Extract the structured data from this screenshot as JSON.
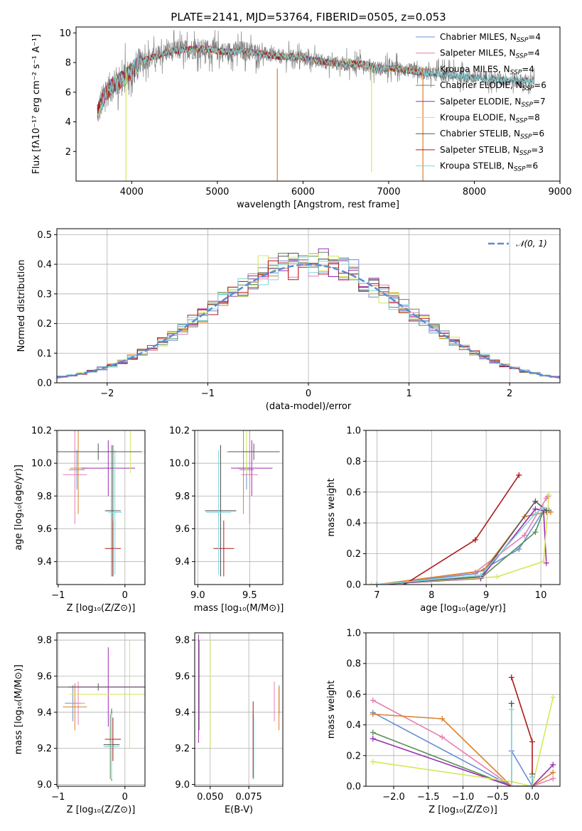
{
  "colors": {
    "Chabrier MILES": "#6a8fd4",
    "Salpeter MILES": "#e57fb2",
    "Kroupa MILES": "#d9822b",
    "Chabrier ELODIE": "#5a8f5a",
    "Salpeter ELODIE": "#9b2bb0",
    "Kroupa ELODIE": "#d4e85a",
    "Chabrier STELIB": "#555555",
    "Salpeter STELIB": "#b01818",
    "Kroupa STELIB": "#7fd6dc",
    "normal": "#5b8bd4"
  },
  "chart_data": [
    {
      "id": "spectrum",
      "type": "line",
      "title": "PLATE=2141, MJD=53764, FIBERID=0505, z=0.053",
      "xlabel": "wavelength [Angstrom, rest frame]",
      "ylabel": "Flux [fλ10⁻¹⁷ erg cm⁻² s⁻¹ A⁻¹]",
      "xlim": [
        3350,
        9000
      ],
      "ylim": [
        0,
        10.4
      ],
      "xticks": [
        4000,
        5000,
        6000,
        7000,
        8000,
        9000
      ],
      "yticks": [
        2,
        4,
        6,
        8,
        10
      ],
      "legend_position": "top-right",
      "legend": [
        {
          "name": "Chabrier MILES, N",
          "sub": "SSP",
          "tail": "=4",
          "color": "Chabrier MILES"
        },
        {
          "name": "Salpeter MILES, N",
          "sub": "SSP",
          "tail": "=4",
          "color": "Salpeter MILES"
        },
        {
          "name": "Kroupa MILES, N",
          "sub": "SSP",
          "tail": "=4",
          "color": "Kroupa MILES"
        },
        {
          "name": "Chabrier ELODIE, N",
          "sub": "SSP",
          "tail": "=6",
          "color": "Chabrier ELODIE"
        },
        {
          "name": "Salpeter ELODIE, N",
          "sub": "SSP",
          "tail": "=7",
          "color": "Salpeter ELODIE"
        },
        {
          "name": "Kroupa ELODIE, N",
          "sub": "SSP",
          "tail": "=8",
          "color": "Kroupa ELODIE"
        },
        {
          "name": "Chabrier STELIB, N",
          "sub": "SSP",
          "tail": "=6",
          "color": "Chabrier STELIB"
        },
        {
          "name": "Salpeter STELIB, N",
          "sub": "SSP",
          "tail": "=3",
          "color": "Salpeter STELIB"
        },
        {
          "name": "Kroupa STELIB, N",
          "sub": "SSP",
          "tail": "=6",
          "color": "Kroupa STELIB"
        }
      ],
      "continuum": {
        "x": [
          3600,
          3700,
          3800,
          3900,
          4000,
          4100,
          4200,
          4300,
          4400,
          4500,
          4700,
          4900,
          5100,
          5300,
          5500,
          5700,
          5900,
          6100,
          6300,
          6500,
          6700,
          6900,
          7100,
          7300,
          7400
        ],
        "y": [
          4.6,
          6.0,
          6.6,
          6.9,
          7.4,
          8.0,
          8.3,
          8.4,
          8.7,
          8.8,
          8.9,
          8.9,
          8.7,
          8.8,
          8.6,
          8.4,
          8.4,
          8.2,
          8.0,
          7.9,
          7.9,
          7.6,
          7.6,
          7.4,
          7.3
        ]
      },
      "model_end_x": 8700,
      "model_tail": {
        "x": [
          7400,
          7800,
          8200,
          8700
        ],
        "y": [
          7.3,
          7.1,
          6.9,
          6.7
        ]
      },
      "dips": [
        {
          "x": 3933,
          "y": 0.0,
          "color": "Kroupa ELODIE"
        },
        {
          "x": 5700,
          "y": 0.0,
          "color": "Kroupa MILES"
        },
        {
          "x": 6800,
          "y": 0.6,
          "color": "Kroupa ELODIE"
        },
        {
          "x": 7400,
          "y": 0.0,
          "color": "Kroupa MILES"
        }
      ]
    },
    {
      "id": "residual-hist",
      "type": "histogram",
      "xlabel": "(data-model)/error",
      "ylabel": "Normed distribution",
      "xlim": [
        -2.5,
        2.5
      ],
      "ylim": [
        0,
        0.52
      ],
      "xticks": [
        -2,
        -1,
        0,
        1,
        2
      ],
      "yticks": [
        0.0,
        0.1,
        0.2,
        0.3,
        0.4,
        0.5
      ],
      "legend_position": "top-right",
      "legend": [
        {
          "name": "𝒩(0, 1)",
          "color": "normal"
        }
      ],
      "bin_width": 0.1
    },
    {
      "id": "age-vs-Z",
      "type": "errorbar",
      "xlabel": "Z [log₁₀(Z/Z⊙)]",
      "ylabel": "age  [log₁₀(age/yr)]",
      "xlim": [
        -1.02,
        0.3
      ],
      "ylim": [
        9.26,
        10.2
      ],
      "xticks": [
        -1,
        0
      ],
      "yticks": [
        9.4,
        9.6,
        9.8,
        10.0,
        10.2
      ],
      "points": [
        {
          "x": -0.72,
          "xerr": 0.12,
          "y": 9.96,
          "yerr": 0.12,
          "color": "Chabrier MILES"
        },
        {
          "x": -0.75,
          "xerr": 0.18,
          "y": 9.93,
          "yerr": 0.3,
          "color": "Salpeter MILES"
        },
        {
          "x": -0.7,
          "xerr": 0.12,
          "y": 9.97,
          "yerr": 0.28,
          "color": "Kroupa MILES"
        },
        {
          "x": -0.2,
          "xerr": 0.08,
          "y": 9.71,
          "yerr": 0.4,
          "color": "Chabrier ELODIE"
        },
        {
          "x": -0.25,
          "xerr": 0.4,
          "y": 9.97,
          "yerr": 0.17,
          "color": "Salpeter ELODIE"
        },
        {
          "x": 0.08,
          "xerr": 1.0,
          "y": 10.07,
          "yerr": 0.13,
          "color": "Kroupa ELODIE"
        },
        {
          "x": -0.18,
          "xerr": 0.12,
          "y": 9.71,
          "yerr": 0.4,
          "color": "Chabrier STELIB"
        },
        {
          "x": -0.18,
          "xerr": 0.12,
          "y": 9.48,
          "yerr": 0.17,
          "color": "Salpeter STELIB"
        },
        {
          "x": -0.15,
          "xerr": 0.1,
          "y": 9.7,
          "yerr": 0.38,
          "color": "Kroupa STELIB"
        },
        {
          "x": -0.4,
          "xerr": 0.65,
          "y": 10.07,
          "yerr": 0.05,
          "color": "Chabrier STELIB"
        }
      ]
    },
    {
      "id": "age-vs-mass",
      "type": "errorbar",
      "xlabel": "mass [log₁₀(M/M⊙)]",
      "ylabel": "",
      "xlim": [
        8.97,
        9.82
      ],
      "ylim": [
        9.26,
        10.2
      ],
      "xticks": [
        9.0,
        9.5
      ],
      "yticks": [
        9.4,
        9.6,
        9.8,
        10.0,
        10.2
      ],
      "points": [
        {
          "x": 9.47,
          "xerr": 0.07,
          "y": 9.96,
          "yerr": 0.12,
          "color": "Chabrier MILES"
        },
        {
          "x": 9.5,
          "xerr": 0.08,
          "y": 9.93,
          "yerr": 0.3,
          "color": "Salpeter MILES"
        },
        {
          "x": 9.44,
          "xerr": 0.06,
          "y": 9.97,
          "yerr": 0.28,
          "color": "Kroupa MILES"
        },
        {
          "x": 9.22,
          "xerr": 0.15,
          "y": 9.71,
          "yerr": 0.4,
          "color": "Chabrier ELODIE"
        },
        {
          "x": 9.52,
          "xerr": 0.2,
          "y": 9.97,
          "yerr": 0.17,
          "color": "Salpeter ELODIE"
        },
        {
          "x": 9.47,
          "xerr": 0.2,
          "y": 10.07,
          "yerr": 0.13,
          "color": "Kroupa ELODIE"
        },
        {
          "x": 9.22,
          "xerr": 0.15,
          "y": 9.71,
          "yerr": 0.4,
          "color": "Chabrier STELIB"
        },
        {
          "x": 9.25,
          "xerr": 0.1,
          "y": 9.48,
          "yerr": 0.17,
          "color": "Salpeter STELIB"
        },
        {
          "x": 9.2,
          "xerr": 0.12,
          "y": 9.7,
          "yerr": 0.38,
          "color": "Kroupa STELIB"
        },
        {
          "x": 9.54,
          "xerr": 0.25,
          "y": 10.07,
          "yerr": 0.05,
          "color": "Chabrier STELIB"
        }
      ]
    },
    {
      "id": "weight-vs-age",
      "type": "line",
      "xlabel": "age  [log₁₀(age/yr)]",
      "ylabel": "mass weight",
      "xlim": [
        6.8,
        10.35
      ],
      "ylim": [
        0,
        1.0
      ],
      "xticks": [
        7,
        8,
        9,
        10
      ],
      "yticks": [
        0.0,
        0.2,
        0.4,
        0.6,
        0.8,
        1.0
      ],
      "series": [
        {
          "color": "Chabrier MILES",
          "x": [
            7.0,
            8.8,
            9.6,
            10.05,
            10.15
          ],
          "y": [
            0.0,
            0.07,
            0.23,
            0.48,
            0.48
          ]
        },
        {
          "color": "Salpeter MILES",
          "x": [
            7.0,
            8.8,
            9.7,
            10.1,
            10.13
          ],
          "y": [
            0.0,
            0.08,
            0.32,
            0.56,
            0.57
          ]
        },
        {
          "color": "Kroupa MILES",
          "x": [
            7.0,
            8.95,
            9.7,
            10.1,
            10.18
          ],
          "y": [
            0.0,
            0.09,
            0.44,
            0.47,
            0.47
          ]
        },
        {
          "color": "Chabrier ELODIE",
          "x": [
            7.0,
            8.9,
            9.9,
            10.05
          ],
          "y": [
            0.0,
            0.04,
            0.34,
            0.48
          ]
        },
        {
          "color": "Salpeter ELODIE",
          "x": [
            7.0,
            8.9,
            9.9,
            10.05,
            10.1
          ],
          "y": [
            0.0,
            0.04,
            0.49,
            0.48,
            0.14
          ]
        },
        {
          "color": "Kroupa ELODIE",
          "x": [
            6.9,
            9.2,
            10.05,
            10.15
          ],
          "y": [
            0.0,
            0.05,
            0.15,
            0.58
          ]
        },
        {
          "color": "Chabrier STELIB",
          "x": [
            7.0,
            8.9,
            9.9,
            10.1
          ],
          "y": [
            0.0,
            0.05,
            0.54,
            0.48
          ]
        },
        {
          "color": "Salpeter STELIB",
          "x": [
            7.5,
            8.8,
            9.6
          ],
          "y": [
            0.0,
            0.29,
            0.71
          ]
        },
        {
          "color": "Kroupa STELIB",
          "x": [
            7.0,
            8.9,
            9.9,
            10.05
          ],
          "y": [
            0.0,
            0.06,
            0.46,
            0.5
          ]
        }
      ]
    },
    {
      "id": "mass-vs-Z",
      "type": "errorbar",
      "xlabel": "Z [log₁₀(Z/Z⊙)]",
      "ylabel": "mass [log₁₀(M/M⊙)]",
      "xlim": [
        -1.02,
        0.3
      ],
      "ylim": [
        8.99,
        9.84
      ],
      "xticks": [
        -1,
        0
      ],
      "yticks": [
        9.0,
        9.2,
        9.4,
        9.6,
        9.8
      ],
      "points": [
        {
          "x": -0.78,
          "xerr": 0.12,
          "y": 9.45,
          "yerr": 0.1,
          "color": "Chabrier MILES"
        },
        {
          "x": -0.7,
          "xerr": 0.1,
          "y": 9.45,
          "yerr": 0.12,
          "color": "Salpeter MILES"
        },
        {
          "x": -0.75,
          "xerr": 0.18,
          "y": 9.43,
          "yerr": 0.13,
          "color": "Kroupa MILES"
        },
        {
          "x": -0.22,
          "xerr": 0.08,
          "y": 9.21,
          "yerr": 0.18,
          "color": "Chabrier ELODIE"
        },
        {
          "x": -0.25,
          "xerr": 0.6,
          "y": 9.54,
          "yerr": 0.22,
          "color": "Salpeter ELODIE"
        },
        {
          "x": 0.07,
          "xerr": 0.9,
          "y": 9.5,
          "yerr": 0.3,
          "color": "Kroupa ELODIE"
        },
        {
          "x": -0.2,
          "xerr": 0.12,
          "y": 9.22,
          "yerr": 0.2,
          "color": "Chabrier STELIB"
        },
        {
          "x": -0.18,
          "xerr": 0.12,
          "y": 9.25,
          "yerr": 0.12,
          "color": "Salpeter STELIB"
        },
        {
          "x": -0.2,
          "xerr": 0.12,
          "y": 9.21,
          "yerr": 0.18,
          "color": "Kroupa STELIB"
        },
        {
          "x": -0.4,
          "xerr": 0.95,
          "y": 9.54,
          "yerr": 0.02,
          "color": "Chabrier STELIB"
        }
      ]
    },
    {
      "id": "mass-vs-ebv",
      "type": "errorbar",
      "xlabel": "E(B-V)",
      "ylabel": "",
      "xlim": [
        0.04,
        0.097
      ],
      "ylim": [
        8.99,
        9.84
      ],
      "xticks": [
        0.05,
        0.075
      ],
      "yticks": [
        9.0,
        9.2,
        9.4,
        9.6,
        9.8
      ],
      "points": [
        {
          "x": 0.0946,
          "xerr": 0,
          "y": 9.47,
          "yerr": 0.08,
          "color": "Chabrier MILES"
        },
        {
          "x": 0.0915,
          "xerr": 0,
          "y": 9.46,
          "yerr": 0.11,
          "color": "Salpeter MILES"
        },
        {
          "x": 0.0945,
          "xerr": 0,
          "y": 9.42,
          "yerr": 0.12,
          "color": "Kroupa MILES"
        },
        {
          "x": 0.0778,
          "xerr": 0,
          "y": 9.21,
          "yerr": 0.18,
          "color": "Chabrier ELODIE"
        },
        {
          "x": 0.0425,
          "xerr": 0,
          "y": 9.53,
          "yerr": 0.3,
          "color": "Salpeter ELODIE"
        },
        {
          "x": 0.05,
          "xerr": 0,
          "y": 9.5,
          "yerr": 0.3,
          "color": "Kroupa ELODIE"
        },
        {
          "x": 0.0428,
          "xerr": 0,
          "y": 9.55,
          "yerr": 0.25,
          "color": "Chabrier STELIB"
        },
        {
          "x": 0.0778,
          "xerr": 0,
          "y": 9.25,
          "yerr": 0.21,
          "color": "Salpeter STELIB"
        },
        {
          "x": 0.0782,
          "xerr": 0,
          "y": 9.2,
          "yerr": 0.17,
          "color": "Kroupa STELIB"
        }
      ]
    },
    {
      "id": "weight-vs-Z",
      "type": "line",
      "xlabel": "Z [log₁₀(Z/Z⊙)]",
      "ylabel": "mass weight",
      "xlim": [
        -2.4,
        0.4
      ],
      "ylim": [
        0,
        1.0
      ],
      "xticks": [
        -2.0,
        -1.5,
        -1.0,
        -0.5,
        0.0
      ],
      "yticks": [
        0.0,
        0.2,
        0.4,
        0.6,
        0.8,
        1.0
      ],
      "series": [
        {
          "color": "Chabrier MILES",
          "x": [
            -2.3,
            -0.3,
            -0.3,
            0.0,
            0.0
          ],
          "y": [
            0.48,
            0.0,
            0.23,
            0.0,
            0.06
          ]
        },
        {
          "color": "Salpeter MILES",
          "x": [
            -2.3,
            -1.3,
            -0.3,
            0.0,
            0.3
          ],
          "y": [
            0.56,
            0.32,
            0.0,
            0.0,
            0.05
          ]
        },
        {
          "color": "Kroupa MILES",
          "x": [
            -2.3,
            -1.3,
            -0.3,
            0.0,
            0.3
          ],
          "y": [
            0.47,
            0.44,
            0.0,
            0.0,
            0.09
          ]
        },
        {
          "color": "Chabrier ELODIE",
          "x": [
            -2.3,
            -0.3,
            0.0
          ],
          "y": [
            0.35,
            0.0,
            0.0
          ]
        },
        {
          "color": "Salpeter ELODIE",
          "x": [
            -2.3,
            -0.3,
            0.0,
            0.3
          ],
          "y": [
            0.31,
            0.0,
            0.0,
            0.14
          ]
        },
        {
          "color": "Kroupa ELODIE",
          "x": [
            -2.3,
            -0.3,
            0.0,
            0.3
          ],
          "y": [
            0.16,
            0.03,
            0.0,
            0.58
          ]
        },
        {
          "color": "Chabrier STELIB",
          "x": [
            -0.3,
            -0.3,
            0.0,
            0.0
          ],
          "y": [
            0.54,
            0.0,
            0.0,
            0.08
          ]
        },
        {
          "color": "Salpeter STELIB",
          "x": [
            -0.3,
            0.0,
            0.0
          ],
          "y": [
            0.71,
            0.29,
            0.0
          ]
        },
        {
          "color": "Kroupa STELIB",
          "x": [
            -0.3,
            -0.3,
            0.0,
            0.0
          ],
          "y": [
            0.5,
            0.0,
            0.0,
            0.06
          ]
        }
      ]
    }
  ]
}
